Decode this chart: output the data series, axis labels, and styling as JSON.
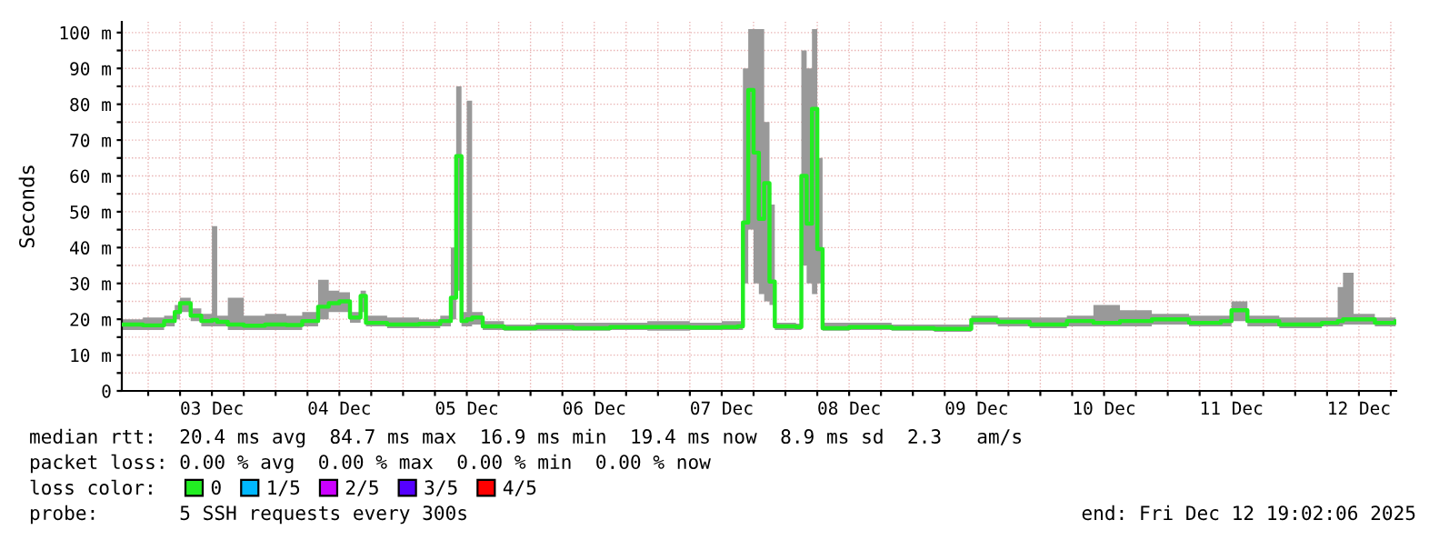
{
  "chart_data": {
    "type": "step",
    "ylabel": "Seconds",
    "legend_title": "loss color:",
    "legend": "bottom",
    "grid": true,
    "xlim": [
      "2025-12-02T19:02",
      "2025-12-12T19:02"
    ],
    "xticks": [
      {
        "value": "2025-12-03T00:00",
        "label": null
      },
      {
        "value": "2025-12-03T06:00",
        "label": null
      },
      {
        "value": "2025-12-03T12:00",
        "label": "03 Dec"
      },
      {
        "value": "2025-12-03T18:00",
        "label": null
      },
      {
        "value": "2025-12-04T00:00",
        "label": null
      },
      {
        "value": "2025-12-04T06:00",
        "label": null
      },
      {
        "value": "2025-12-04T12:00",
        "label": "04 Dec"
      },
      {
        "value": "2025-12-04T18:00",
        "label": null
      },
      {
        "value": "2025-12-05T00:00",
        "label": null
      },
      {
        "value": "2025-12-05T06:00",
        "label": null
      },
      {
        "value": "2025-12-05T12:00",
        "label": "05 Dec"
      },
      {
        "value": "2025-12-05T18:00",
        "label": null
      },
      {
        "value": "2025-12-06T00:00",
        "label": null
      },
      {
        "value": "2025-12-06T06:00",
        "label": null
      },
      {
        "value": "2025-12-06T12:00",
        "label": "06 Dec"
      },
      {
        "value": "2025-12-06T18:00",
        "label": null
      },
      {
        "value": "2025-12-07T00:00",
        "label": null
      },
      {
        "value": "2025-12-07T06:00",
        "label": null
      },
      {
        "value": "2025-12-07T12:00",
        "label": "07 Dec"
      },
      {
        "value": "2025-12-07T18:00",
        "label": null
      },
      {
        "value": "2025-12-08T00:00",
        "label": null
      },
      {
        "value": "2025-12-08T06:00",
        "label": null
      },
      {
        "value": "2025-12-08T12:00",
        "label": "08 Dec"
      },
      {
        "value": "2025-12-08T18:00",
        "label": null
      },
      {
        "value": "2025-12-09T00:00",
        "label": null
      },
      {
        "value": "2025-12-09T06:00",
        "label": null
      },
      {
        "value": "2025-12-09T12:00",
        "label": "09 Dec"
      },
      {
        "value": "2025-12-09T18:00",
        "label": null
      },
      {
        "value": "2025-12-10T00:00",
        "label": null
      },
      {
        "value": "2025-12-10T06:00",
        "label": null
      },
      {
        "value": "2025-12-10T12:00",
        "label": "10 Dec"
      },
      {
        "value": "2025-12-10T18:00",
        "label": null
      },
      {
        "value": "2025-12-11T00:00",
        "label": null
      },
      {
        "value": "2025-12-11T06:00",
        "label": null
      },
      {
        "value": "2025-12-11T12:00",
        "label": "11 Dec"
      },
      {
        "value": "2025-12-11T18:00",
        "label": null
      },
      {
        "value": "2025-12-12T00:00",
        "label": null
      },
      {
        "value": "2025-12-12T06:00",
        "label": null
      },
      {
        "value": "2025-12-12T12:00",
        "label": "12 Dec"
      },
      {
        "value": "2025-12-12T18:00",
        "label": null
      }
    ],
    "ylim": [
      0,
      103
    ],
    "yticks": [
      0,
      {
        "value": 5,
        "label": null
      },
      {
        "value": 10,
        "label": "10 m"
      },
      {
        "value": 15,
        "label": null
      },
      {
        "value": 20,
        "label": "20 m"
      },
      {
        "value": 25,
        "label": null
      },
      {
        "value": 30,
        "label": "30 m"
      },
      {
        "value": 35,
        "label": null
      },
      {
        "value": 40,
        "label": "40 m"
      },
      {
        "value": 45,
        "label": null
      },
      {
        "value": 50,
        "label": "50 m"
      },
      {
        "value": 55,
        "label": null
      },
      {
        "value": 60,
        "label": "60 m"
      },
      {
        "value": 65,
        "label": null
      },
      {
        "value": 70,
        "label": "70 m"
      },
      {
        "value": 75,
        "label": null
      },
      {
        "value": 80,
        "label": "80 m"
      },
      {
        "value": 85,
        "label": null
      },
      {
        "value": 90,
        "label": "90 m"
      },
      {
        "value": 95,
        "label": null
      },
      {
        "value": 100,
        "label": "100 m"
      }
    ],
    "x": [
      "2025-12-02T19:05",
      "2025-12-02T23:00",
      "2025-12-03T03:00",
      "2025-12-03T05:00",
      "2025-12-03T06:00",
      "2025-12-03T08:00",
      "2025-12-03T10:00",
      "2025-12-03T12:00",
      "2025-12-03T13:00",
      "2025-12-03T15:00",
      "2025-12-03T18:00",
      "2025-12-03T22:00",
      "2025-12-04T02:00",
      "2025-12-04T05:00",
      "2025-12-04T08:00",
      "2025-12-04T10:00",
      "2025-12-04T12:00",
      "2025-12-04T14:00",
      "2025-12-04T16:00",
      "2025-12-04T17:00",
      "2025-12-04T21:00",
      "2025-12-05T03:00",
      "2025-12-05T07:00",
      "2025-12-05T09:00",
      "2025-12-05T10:00",
      "2025-12-05T11:00",
      "2025-12-05T12:00",
      "2025-12-05T13:00",
      "2025-12-05T15:00",
      "2025-12-05T19:00",
      "2025-12-06T01:00",
      "2025-12-06T08:00",
      "2025-12-06T15:00",
      "2025-12-06T22:00",
      "2025-12-07T06:00",
      "2025-12-07T12:00",
      "2025-12-07T15:00",
      "2025-12-07T16:00",
      "2025-12-07T17:00",
      "2025-12-07T18:00",
      "2025-12-07T19:00",
      "2025-12-07T20:00",
      "2025-12-07T21:00",
      "2025-12-07T22:00",
      "2025-12-08T02:00",
      "2025-12-08T03:00",
      "2025-12-08T04:00",
      "2025-12-08T05:00",
      "2025-12-08T06:00",
      "2025-12-08T07:00",
      "2025-12-08T12:00",
      "2025-12-08T20:00",
      "2025-12-09T04:00",
      "2025-12-09T11:00",
      "2025-12-09T16:00",
      "2025-12-09T22:00",
      "2025-12-10T05:00",
      "2025-12-10T10:00",
      "2025-12-10T15:00",
      "2025-12-10T21:00",
      "2025-12-11T04:00",
      "2025-12-11T10:00",
      "2025-12-11T12:00",
      "2025-12-11T15:00",
      "2025-12-11T21:00",
      "2025-12-12T05:00",
      "2025-12-12T08:00",
      "2025-12-12T09:00",
      "2025-12-12T11:00",
      "2025-12-12T15:00",
      "2025-12-12T18:55"
    ],
    "series": [
      {
        "name": "0",
        "color": "#22ee22",
        "values": [
          18.5,
          18.3,
          19.5,
          22,
          24.5,
          21,
          19.5,
          19.8,
          19.3,
          18.5,
          18.2,
          18.5,
          18.4,
          19.5,
          23.5,
          24.5,
          25,
          20.5,
          26.5,
          19,
          18.5,
          18.7,
          19.5,
          26,
          65.5,
          19.5,
          20,
          20.5,
          18,
          17.5,
          17.8,
          17.5,
          17.8,
          17.8,
          17.7,
          17.8,
          18,
          47,
          84,
          66.5,
          48,
          58,
          30.5,
          18,
          17.8,
          60,
          46.7,
          78.7,
          39.6,
          17.5,
          17.8,
          17.5,
          17.3,
          19.8,
          19.3,
          18.5,
          19.5,
          19,
          19.5,
          20,
          19,
          19.5,
          22.5,
          19.5,
          18.5,
          19,
          19.5,
          20,
          20,
          19,
          19.4
        ],
        "lower": [
          17,
          17,
          18,
          20,
          22,
          19.5,
          18,
          18,
          18,
          17,
          17,
          17,
          17,
          18,
          20,
          22,
          22,
          19,
          22,
          18,
          17.5,
          17.5,
          18,
          20,
          28,
          18,
          18,
          18.5,
          17,
          16.8,
          16.8,
          16.8,
          17,
          16.8,
          17,
          17,
          17,
          30,
          45,
          30,
          27,
          25,
          24,
          17,
          17,
          35,
          30,
          27,
          30,
          16.8,
          17,
          16.8,
          16.5,
          18.5,
          18,
          17.5,
          18,
          18,
          18,
          18.5,
          18,
          18,
          19.5,
          18,
          17.5,
          18,
          18,
          18.5,
          18.5,
          18,
          18
        ],
        "upper": [
          20,
          20.5,
          21,
          24,
          26,
          23,
          21.5,
          46,
          21,
          26,
          21,
          21.5,
          21,
          22,
          31,
          28,
          27.5,
          22,
          28,
          21,
          20.5,
          20,
          21,
          40,
          85,
          22,
          81,
          22,
          19.5,
          18.5,
          19,
          19,
          19,
          19.5,
          19,
          19.5,
          19.5,
          90,
          101,
          101,
          101,
          75,
          52,
          19,
          18.8,
          95,
          90,
          101,
          65,
          19,
          19,
          18.5,
          18.5,
          21,
          20.5,
          20.5,
          21,
          24,
          22.5,
          21.5,
          21,
          21,
          25,
          21,
          20.5,
          20.5,
          29,
          33,
          21.5,
          20.5,
          20.5
        ]
      },
      {
        "name": "1/5",
        "color": "#00b8ff",
        "values": [
          null,
          null,
          null,
          null,
          null,
          null,
          null,
          null,
          null,
          null,
          null,
          null,
          null,
          null,
          null,
          null,
          null,
          null,
          null,
          null,
          null,
          null,
          null,
          null,
          null,
          null,
          null,
          null,
          null,
          null,
          null,
          null,
          null,
          null,
          null,
          null,
          null,
          null,
          null,
          null,
          null,
          null,
          null,
          null,
          null,
          null,
          null,
          null,
          null,
          null,
          null,
          null,
          null,
          null,
          null,
          null,
          null,
          null,
          null,
          null,
          null,
          null,
          null,
          null,
          null,
          null,
          null,
          null,
          null,
          null,
          null
        ]
      },
      {
        "name": "2/5",
        "color": "#cc00ff",
        "values": [
          null,
          null,
          null,
          null,
          null,
          null,
          null,
          null,
          null,
          null,
          null,
          null,
          null,
          null,
          null,
          null,
          null,
          null,
          null,
          null,
          null,
          null,
          null,
          null,
          null,
          null,
          null,
          null,
          null,
          null,
          null,
          null,
          null,
          null,
          null,
          null,
          null,
          null,
          null,
          null,
          null,
          null,
          null,
          null,
          null,
          null,
          null,
          null,
          null,
          null,
          null,
          null,
          null,
          null,
          null,
          null,
          null,
          null,
          null,
          null,
          null,
          null,
          null,
          null,
          null,
          null,
          null,
          null,
          null,
          null,
          null
        ]
      },
      {
        "name": "3/5",
        "color": "#5500ff",
        "values": [
          null,
          null,
          null,
          null,
          null,
          null,
          null,
          null,
          null,
          null,
          null,
          null,
          null,
          null,
          null,
          null,
          null,
          null,
          null,
          null,
          null,
          null,
          null,
          null,
          null,
          null,
          null,
          null,
          null,
          null,
          null,
          null,
          null,
          null,
          null,
          null,
          null,
          null,
          null,
          null,
          null,
          null,
          null,
          null,
          null,
          null,
          null,
          null,
          null,
          null,
          null,
          null,
          null,
          null,
          null,
          null,
          null,
          null,
          null,
          null,
          null,
          null,
          null,
          null,
          null,
          null,
          null,
          null,
          null,
          null,
          null
        ]
      },
      {
        "name": "4/5",
        "color": "#ff0000",
        "values": [
          null,
          null,
          null,
          null,
          null,
          null,
          null,
          null,
          null,
          null,
          null,
          null,
          null,
          null,
          null,
          null,
          null,
          null,
          null,
          null,
          null,
          null,
          null,
          null,
          null,
          null,
          null,
          null,
          null,
          null,
          null,
          null,
          null,
          null,
          null,
          null,
          null,
          null,
          null,
          null,
          null,
          null,
          null,
          null,
          null,
          null,
          null,
          null,
          null,
          null,
          null,
          null,
          null,
          null,
          null,
          null,
          null,
          null,
          null,
          null,
          null,
          null,
          null,
          null,
          null,
          null,
          null,
          null,
          null,
          null,
          null
        ]
      }
    ],
    "annotations": [
      "median rtt:  20.4 ms avg  84.7 ms max  16.9 ms min  19.4 ms now  8.9 ms sd  2.3   am/s",
      "packet loss: 0.00 % avg  0.00 % max  0.00 % min  0.00 % now",
      "probe:       5 SSH requests every 300s",
      "end: Fri Dec 12 19:02:06 2025"
    ]
  }
}
